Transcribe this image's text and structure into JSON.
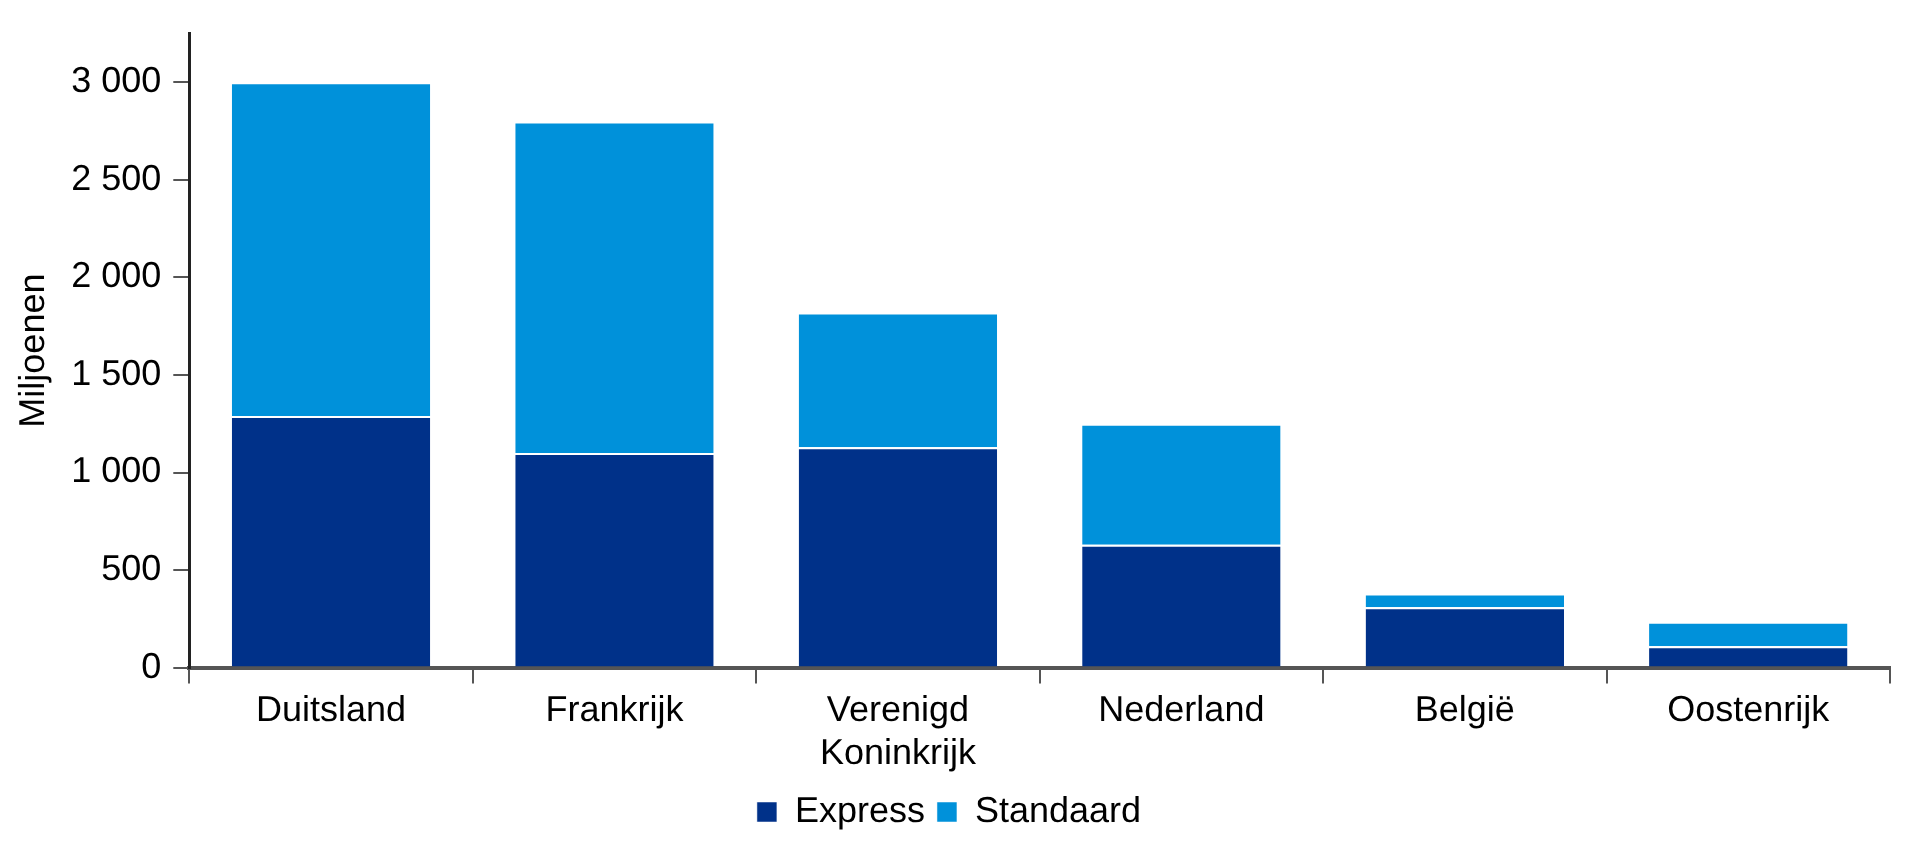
{
  "chart_data": {
    "type": "bar",
    "stacked": true,
    "ylabel": "Miljoenen",
    "categories": [
      "Duitsland",
      "Frankrijk",
      "Verenigd Koninkrijk",
      "Nederland",
      "België",
      "Oostenrijk"
    ],
    "series": [
      {
        "name": "Express",
        "color": "#003189",
        "values": [
          1290,
          1100,
          1130,
          630,
          310,
          110
        ]
      },
      {
        "name": "Standaard",
        "color": "#0091da",
        "values": [
          1710,
          1700,
          690,
          620,
          70,
          125
        ]
      }
    ],
    "ylim": [
      0,
      3250
    ],
    "yticks": [
      0,
      500,
      {
        "value": 1000,
        "label": "1 000"
      },
      {
        "value": 1500,
        "label": "1 500"
      },
      {
        "value": 2000,
        "label": "2 000"
      },
      {
        "value": 2500,
        "label": "2 500"
      },
      {
        "value": 3000,
        "label": "3 000"
      }
    ],
    "grid": false,
    "legend": "bottom"
  }
}
